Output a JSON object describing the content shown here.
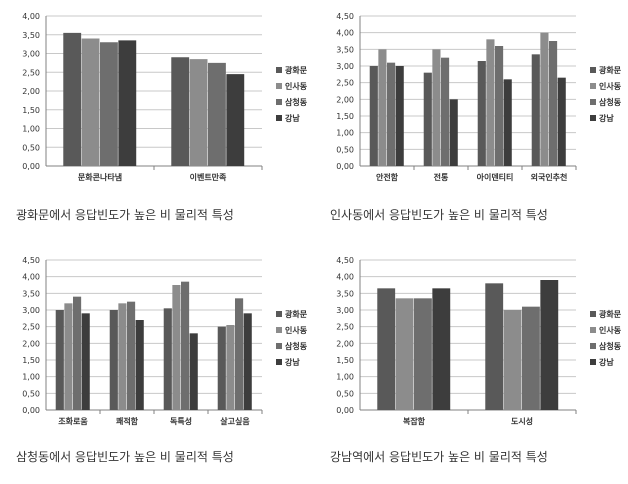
{
  "colors": {
    "series": [
      "#595959",
      "#8c8c8c",
      "#6e6e6e",
      "#3d3d3d"
    ],
    "grid": "#c8c8c8",
    "axis": "#808080",
    "text": "#333333"
  },
  "captions": [
    "광화문에서 응답빈도가 높은 비 물리적 특성",
    "인사동에서 응답빈도가 높은 비 물리적 특성",
    "삼청동에서 응답빈도가 높은 비 물리적 특성",
    "강남역에서 응답빈도가 높은 비 물리적 특성"
  ],
  "chart_data": [
    {
      "type": "bar",
      "categories": [
        "문화콘나타냄",
        "이벤트만족"
      ],
      "series": [
        {
          "name": "광화문",
          "values": [
            3.55,
            2.9
          ]
        },
        {
          "name": "인사동",
          "values": [
            3.4,
            2.85
          ]
        },
        {
          "name": "삼청동",
          "values": [
            3.3,
            2.75
          ]
        },
        {
          "name": "강남",
          "values": [
            3.35,
            2.45
          ]
        }
      ],
      "ylim": [
        0,
        4
      ],
      "yticks": [
        "0,00",
        "0,50",
        "1,00",
        "1,50",
        "2,00",
        "2,50",
        "3,00",
        "3,50",
        "4,00"
      ],
      "grid": true,
      "legend": "right"
    },
    {
      "type": "bar",
      "categories": [
        "안전함",
        "전통",
        "아이덴티티",
        "외국인추천"
      ],
      "series": [
        {
          "name": "광화문",
          "values": [
            3.0,
            2.8,
            3.15,
            3.35
          ]
        },
        {
          "name": "인사동",
          "values": [
            3.5,
            3.5,
            3.8,
            4.0
          ]
        },
        {
          "name": "삼청동",
          "values": [
            3.1,
            3.25,
            3.6,
            3.75
          ]
        },
        {
          "name": "강남",
          "values": [
            3.0,
            2.0,
            2.6,
            2.65
          ]
        }
      ],
      "ylim": [
        0,
        4.5
      ],
      "yticks": [
        "0,00",
        "0,50",
        "1,00",
        "1,50",
        "2,00",
        "2,50",
        "3,00",
        "3,50",
        "4,00",
        "4,50"
      ],
      "grid": true,
      "legend": "right"
    },
    {
      "type": "bar",
      "categories": [
        "조화로움",
        "쾌적함",
        "독특성",
        "살고싶음"
      ],
      "series": [
        {
          "name": "광화문",
          "values": [
            3.0,
            3.0,
            3.05,
            2.5
          ]
        },
        {
          "name": "인사동",
          "values": [
            3.2,
            3.2,
            3.75,
            2.55
          ]
        },
        {
          "name": "삼청동",
          "values": [
            3.4,
            3.25,
            3.85,
            3.35
          ]
        },
        {
          "name": "강남",
          "values": [
            2.9,
            2.7,
            2.3,
            2.9
          ]
        }
      ],
      "ylim": [
        0,
        4.5
      ],
      "yticks": [
        "0,00",
        "0,50",
        "1,00",
        "1,50",
        "2,00",
        "2,50",
        "3,00",
        "3,50",
        "4,00",
        "4,50"
      ],
      "grid": true,
      "legend": "right"
    },
    {
      "type": "bar",
      "categories": [
        "복잡함",
        "도시성"
      ],
      "series": [
        {
          "name": "광화문",
          "values": [
            3.65,
            3.8
          ]
        },
        {
          "name": "인사동",
          "values": [
            3.35,
            3.0
          ]
        },
        {
          "name": "삼청동",
          "values": [
            3.35,
            3.1
          ]
        },
        {
          "name": "강남",
          "values": [
            3.65,
            3.9
          ]
        }
      ],
      "ylim": [
        0,
        4.5
      ],
      "yticks": [
        "0,00",
        "0,50",
        "1,00",
        "1,50",
        "2,00",
        "2,50",
        "3,00",
        "3,50",
        "4,00",
        "4,50"
      ],
      "grid": true,
      "legend": "right"
    }
  ]
}
